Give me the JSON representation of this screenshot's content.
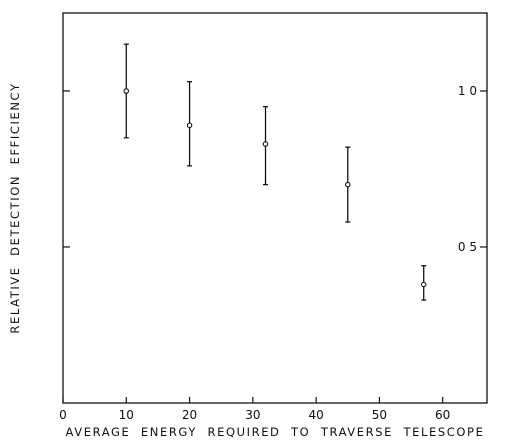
{
  "chart_data": {
    "type": "scatter",
    "title": "",
    "xlabel": "AVERAGE  ENERGY  REQUIRED  TO  TRAVERSE  TELESCOPE",
    "ylabel": "RELATIVE  DETECTION  EFFICIENCY",
    "xlim": [
      0,
      67
    ],
    "ylim": [
      0,
      1.25
    ],
    "xticks": [
      0,
      10,
      20,
      30,
      40,
      50,
      60
    ],
    "xtick_labels": [
      "0",
      "10",
      "20",
      "30",
      "40",
      "50",
      "60"
    ],
    "yticks": [
      0.5,
      1.0
    ],
    "ytick_labels": [
      "0 5",
      "1 0"
    ],
    "grid": false,
    "series": [
      {
        "x": [
          10,
          20,
          32,
          45,
          57
        ],
        "y": [
          1.0,
          0.89,
          0.83,
          0.7,
          0.38
        ],
        "y_err_low": [
          0.85,
          0.76,
          0.7,
          0.58,
          0.33
        ],
        "y_err_high": [
          1.15,
          1.03,
          0.95,
          0.82,
          0.44
        ]
      }
    ]
  }
}
